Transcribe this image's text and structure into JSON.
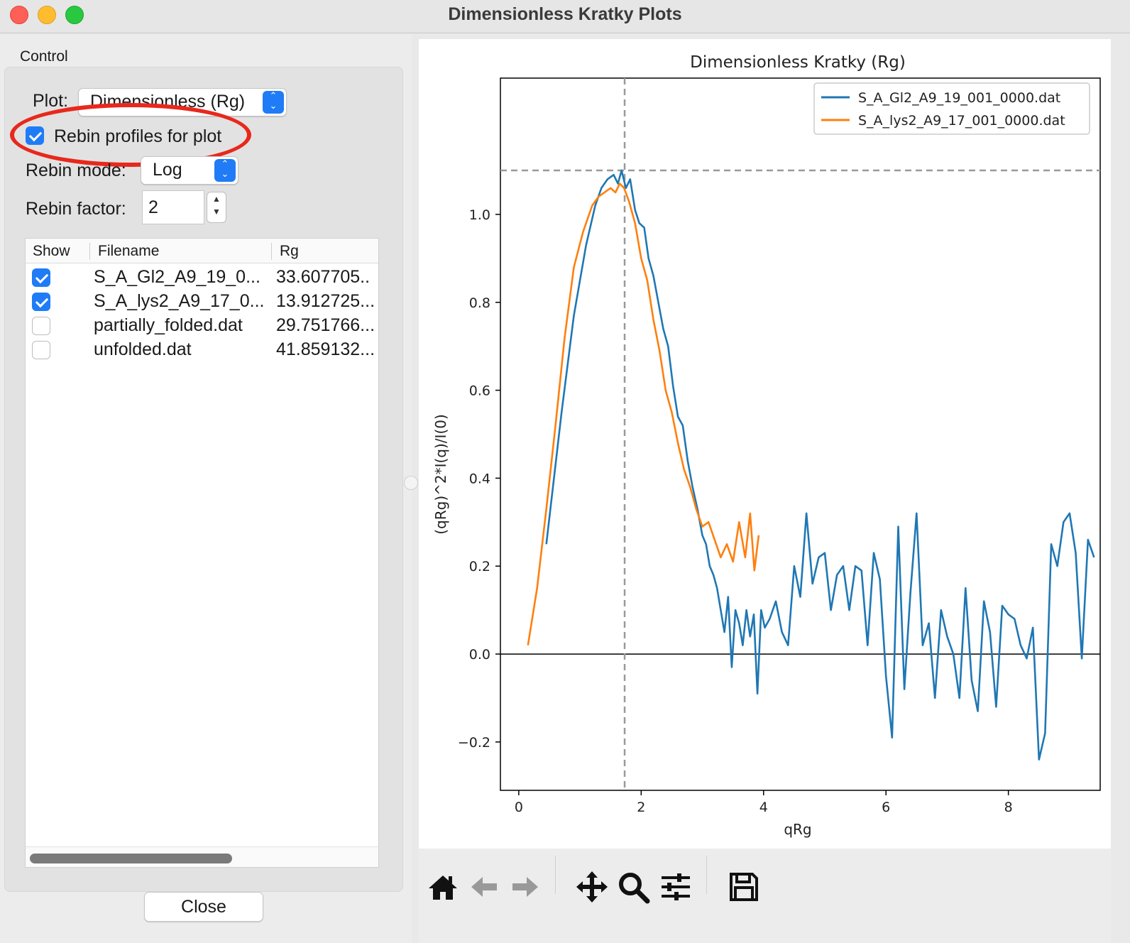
{
  "window": {
    "title": "Dimensionless Kratky Plots"
  },
  "control": {
    "label": "Control",
    "plot_label": "Plot:",
    "plot_value": "Dimensionless (Rg)",
    "rebin_checkbox_label": "Rebin profiles for plot",
    "rebin_checked": true,
    "rebin_mode_label": "Rebin mode:",
    "rebin_mode_value": "Log",
    "rebin_factor_label": "Rebin factor:",
    "rebin_factor_value": "2"
  },
  "table": {
    "headers": {
      "show": "Show",
      "filename": "Filename",
      "rg": "Rg"
    },
    "rows": [
      {
        "show": true,
        "filename": "S_A_Gl2_A9_19_0...",
        "rg": "33.607705.."
      },
      {
        "show": true,
        "filename": "S_A_lys2_A9_17_0...",
        "rg": "13.912725..."
      },
      {
        "show": false,
        "filename": "partially_folded.dat",
        "rg": "29.751766..."
      },
      {
        "show": false,
        "filename": "unfolded.dat",
        "rg": "41.859132..."
      }
    ]
  },
  "close_button": "Close",
  "toolbar": [
    "home-icon",
    "back-arrow-icon",
    "forward-arrow-icon",
    "pan-icon",
    "zoom-icon",
    "configure-icon",
    "save-icon"
  ],
  "chart_data": {
    "type": "line",
    "title": "Dimensionless Kratky (Rg)",
    "xlabel": "qRg",
    "ylabel": "(qRg)^2*I(q)/I(0)",
    "xlim": [
      -0.3,
      9.5
    ],
    "ylim": [
      -0.31,
      1.31
    ],
    "xticks": [
      0,
      2,
      4,
      6,
      8
    ],
    "yticks": [
      -0.2,
      0.0,
      0.2,
      0.4,
      0.6,
      0.8,
      1.0
    ],
    "reference_lines": {
      "vertical_x": 1.73,
      "horizontal_y": 1.1,
      "zero_y": 0.0
    },
    "legend": "top-right",
    "series": [
      {
        "name": "S_A_Gl2_A9_19_001_0000.dat",
        "color": "#1f77b4",
        "x": [
          0.45,
          0.7,
          0.9,
          1.1,
          1.25,
          1.35,
          1.45,
          1.55,
          1.62,
          1.68,
          1.75,
          1.82,
          1.9,
          1.97,
          2.05,
          2.12,
          2.2,
          2.28,
          2.36,
          2.44,
          2.52,
          2.6,
          2.68,
          2.76,
          2.84,
          2.92,
          3.0,
          3.06,
          3.12,
          3.18,
          3.24,
          3.3,
          3.36,
          3.42,
          3.48,
          3.54,
          3.6,
          3.66,
          3.72,
          3.78,
          3.84,
          3.9,
          3.96,
          4.02,
          4.1,
          4.2,
          4.3,
          4.4,
          4.5,
          4.6,
          4.7,
          4.8,
          4.9,
          5.0,
          5.1,
          5.2,
          5.3,
          5.4,
          5.5,
          5.6,
          5.7,
          5.8,
          5.9,
          6.0,
          6.1,
          6.2,
          6.3,
          6.4,
          6.5,
          6.6,
          6.7,
          6.8,
          6.9,
          7.0,
          7.1,
          7.2,
          7.3,
          7.4,
          7.5,
          7.6,
          7.7,
          7.8,
          7.9,
          8.0,
          8.1,
          8.2,
          8.3,
          8.4,
          8.5,
          8.6,
          8.7,
          8.8,
          8.9,
          9.0,
          9.1,
          9.2,
          9.3,
          9.4
        ],
        "y": [
          0.25,
          0.55,
          0.77,
          0.93,
          1.02,
          1.06,
          1.08,
          1.09,
          1.07,
          1.1,
          1.06,
          1.08,
          1.01,
          0.98,
          0.97,
          0.9,
          0.86,
          0.8,
          0.74,
          0.7,
          0.61,
          0.54,
          0.52,
          0.44,
          0.38,
          0.33,
          0.27,
          0.25,
          0.2,
          0.18,
          0.15,
          0.1,
          0.05,
          0.13,
          -0.03,
          0.1,
          0.07,
          0.02,
          0.1,
          0.04,
          0.09,
          -0.09,
          0.1,
          0.06,
          0.08,
          0.12,
          0.05,
          0.02,
          0.2,
          0.13,
          0.32,
          0.16,
          0.22,
          0.23,
          0.1,
          0.18,
          0.2,
          0.1,
          0.2,
          0.19,
          0.02,
          0.23,
          0.17,
          -0.05,
          -0.19,
          0.29,
          -0.08,
          0.14,
          0.32,
          0.02,
          0.07,
          -0.1,
          0.1,
          0.04,
          0.0,
          -0.1,
          0.15,
          -0.06,
          -0.13,
          0.12,
          0.05,
          -0.12,
          0.11,
          0.09,
          0.08,
          0.02,
          -0.01,
          0.06,
          -0.24,
          -0.18,
          0.25,
          0.2,
          0.3,
          0.32,
          0.23,
          -0.01,
          0.26,
          0.22
        ]
      },
      {
        "name": "S_A_lys2_A9_17_001_0000.dat",
        "color": "#ff7f0e",
        "x": [
          0.15,
          0.3,
          0.45,
          0.6,
          0.75,
          0.9,
          1.05,
          1.2,
          1.3,
          1.4,
          1.5,
          1.58,
          1.65,
          1.72,
          1.8,
          1.9,
          2.0,
          2.1,
          2.2,
          2.3,
          2.4,
          2.5,
          2.6,
          2.7,
          2.8,
          2.9,
          3.0,
          3.1,
          3.2,
          3.3,
          3.4,
          3.5,
          3.6,
          3.7,
          3.78,
          3.85,
          3.92
        ],
        "y": [
          0.02,
          0.15,
          0.33,
          0.52,
          0.72,
          0.88,
          0.96,
          1.02,
          1.04,
          1.05,
          1.06,
          1.05,
          1.07,
          1.06,
          1.03,
          0.98,
          0.9,
          0.85,
          0.76,
          0.69,
          0.6,
          0.55,
          0.48,
          0.42,
          0.38,
          0.33,
          0.29,
          0.3,
          0.26,
          0.22,
          0.25,
          0.21,
          0.3,
          0.22,
          0.32,
          0.19,
          0.27
        ]
      }
    ]
  }
}
